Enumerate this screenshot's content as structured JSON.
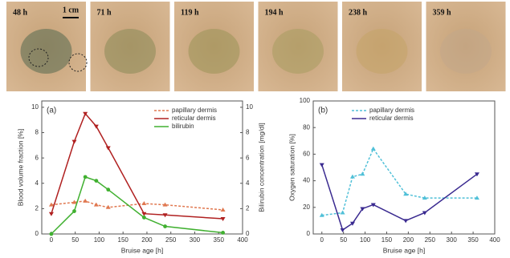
{
  "photos": {
    "labels": [
      "48 h",
      "71 h",
      "119 h",
      "194 h",
      "238 h",
      "359 h"
    ],
    "scale": "1 cm"
  },
  "chart_data": [
    {
      "type": "line",
      "annotation": "(a)",
      "xlabel": "Bruise age [h]",
      "ylabel": "Blood volume fraction [%]",
      "y2label": "Bilirubin concentration [mg/dl]",
      "x": [
        0,
        48,
        71,
        94,
        119,
        194,
        238,
        359
      ],
      "xlim": [
        -20,
        400
      ],
      "xticks": [
        0,
        50,
        100,
        150,
        200,
        250,
        300,
        350,
        400
      ],
      "ylim": [
        0,
        10.5
      ],
      "yticks": [
        0,
        2,
        4,
        6,
        8,
        10
      ],
      "y2lim": [
        0,
        10.5
      ],
      "y2ticks": [
        0,
        2,
        4,
        6,
        8,
        10
      ],
      "legend": "upper right",
      "series": [
        {
          "name": "papillary dermis",
          "color": "#e07850",
          "dashed": true,
          "marker": "triangle-up",
          "values": [
            2.3,
            2.5,
            2.6,
            2.3,
            2.1,
            2.4,
            2.3,
            1.9
          ]
        },
        {
          "name": "reticular dermis",
          "color": "#b02020",
          "dashed": false,
          "marker": "triangle-down",
          "values": [
            1.6,
            7.3,
            9.5,
            8.5,
            6.8,
            1.6,
            1.5,
            1.2
          ]
        },
        {
          "name": "bilirubin",
          "color": "#40b030",
          "dashed": false,
          "marker": "circle",
          "axis": "y2",
          "values": [
            0,
            1.8,
            4.5,
            4.2,
            3.5,
            1.3,
            0.6,
            0.1
          ]
        }
      ]
    },
    {
      "type": "line",
      "annotation": "(b)",
      "xlabel": "Bruise age [h]",
      "ylabel": "Oxygen saturation [%]",
      "x": [
        0,
        48,
        71,
        94,
        119,
        194,
        238,
        359
      ],
      "xlim": [
        -20,
        400
      ],
      "xticks": [
        0,
        50,
        100,
        150,
        200,
        250,
        300,
        350,
        400
      ],
      "ylim": [
        0,
        100
      ],
      "yticks": [
        0,
        20,
        40,
        60,
        80,
        100
      ],
      "legend": "upper center",
      "series": [
        {
          "name": "papillary dermis",
          "color": "#50c0d8",
          "dashed": true,
          "marker": "triangle-up",
          "values": [
            14,
            16,
            43,
            45,
            64,
            30,
            27,
            27
          ]
        },
        {
          "name": "reticular dermis",
          "color": "#3a2a90",
          "dashed": false,
          "marker": "triangle-down",
          "values": [
            52,
            3,
            8,
            19,
            22,
            10,
            16,
            45
          ]
        }
      ]
    }
  ]
}
